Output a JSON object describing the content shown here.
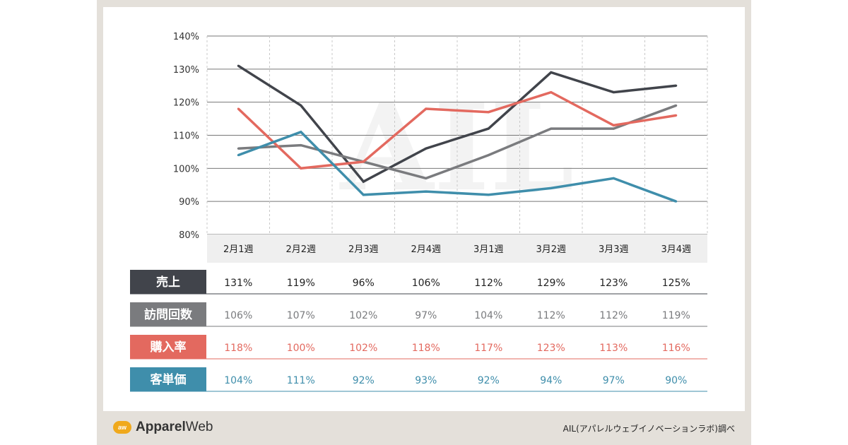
{
  "chart_data": {
    "type": "line",
    "categories": [
      "2月1週",
      "2月2週",
      "2月3週",
      "2月4週",
      "3月1週",
      "3月2週",
      "3月3週",
      "3月4週"
    ],
    "yticks": [
      "140%",
      "130%",
      "120%",
      "110%",
      "100%",
      "90%",
      "80%"
    ],
    "ylim": [
      80,
      140
    ],
    "watermark": "AIL",
    "series": [
      {
        "name": "売上",
        "color": "#41444b",
        "values": [
          131,
          119,
          96,
          106,
          112,
          129,
          123,
          125
        ],
        "labels": [
          "131%",
          "119%",
          "96%",
          "106%",
          "112%",
          "129%",
          "123%",
          "125%"
        ]
      },
      {
        "name": "訪問回数",
        "color": "#7a7b7e",
        "values": [
          106,
          107,
          102,
          97,
          104,
          112,
          112,
          119
        ],
        "labels": [
          "106%",
          "107%",
          "102%",
          "97%",
          "104%",
          "112%",
          "112%",
          "119%"
        ]
      },
      {
        "name": "購入率",
        "color": "#e3695f",
        "values": [
          118,
          100,
          102,
          118,
          117,
          123,
          113,
          116
        ],
        "labels": [
          "118%",
          "100%",
          "102%",
          "118%",
          "117%",
          "123%",
          "113%",
          "116%"
        ]
      },
      {
        "name": "客単価",
        "color": "#3f8eab",
        "values": [
          104,
          111,
          92,
          93,
          92,
          94,
          97,
          90
        ],
        "labels": [
          "104%",
          "111%",
          "92%",
          "93%",
          "92%",
          "94%",
          "97%",
          "90%"
        ]
      }
    ]
  },
  "footer": {
    "logo_mark": "aw",
    "logo_bold": "Apparel",
    "logo_regular": "Web",
    "source": "AIL(アパレルウェブイノベーションラボ)調べ"
  }
}
